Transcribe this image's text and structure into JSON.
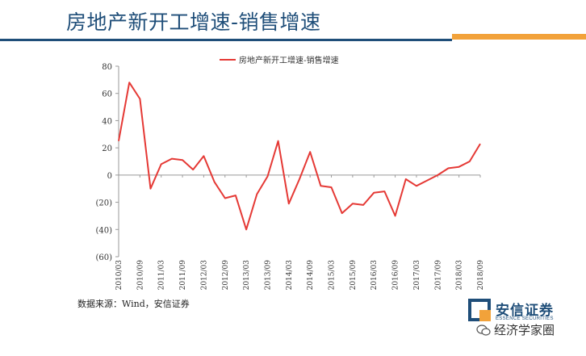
{
  "slide": {
    "title": "房地产新开工增速-销售增速",
    "source": "数据来源：Wind，安信证券",
    "brand_name": "安信证券",
    "brand_sub": "ESSENCE SECURITIES",
    "watermark": "经济学家圈",
    "accent_blue": "#1f4e79",
    "accent_orange": "#f2a23a"
  },
  "chart_data": {
    "type": "line",
    "series": [
      {
        "name": "房地产新开工增速-销售增速",
        "color": "#e53935",
        "values": [
          25,
          68,
          56,
          -10,
          8,
          12,
          11,
          4,
          14,
          -5,
          -17,
          -15,
          -40,
          -14,
          -1,
          25,
          -21,
          -3,
          17,
          -8,
          -9,
          -28,
          -21,
          -22,
          -13,
          -12,
          -30,
          -3,
          -8,
          -4,
          0,
          5,
          6,
          10,
          23
        ]
      }
    ],
    "x_ticks": [
      "2010/03",
      "2010/09",
      "2011/03",
      "2011/09",
      "2012/03",
      "2012/09",
      "2013/03",
      "2013/09",
      "2014/03",
      "2014/09",
      "2015/03",
      "2015/09",
      "2016/03",
      "2016/09",
      "2017/03",
      "2017/09",
      "2018/03",
      "2018/09"
    ],
    "y_ticks": [
      "80",
      "60",
      "40",
      "20",
      "0",
      "(20)",
      "(40)",
      "(60)"
    ],
    "y_tick_values": [
      80,
      60,
      40,
      20,
      0,
      -20,
      -40,
      -60
    ],
    "ylim": [
      -60,
      80
    ],
    "legend_position": "top-center",
    "grid": false
  }
}
